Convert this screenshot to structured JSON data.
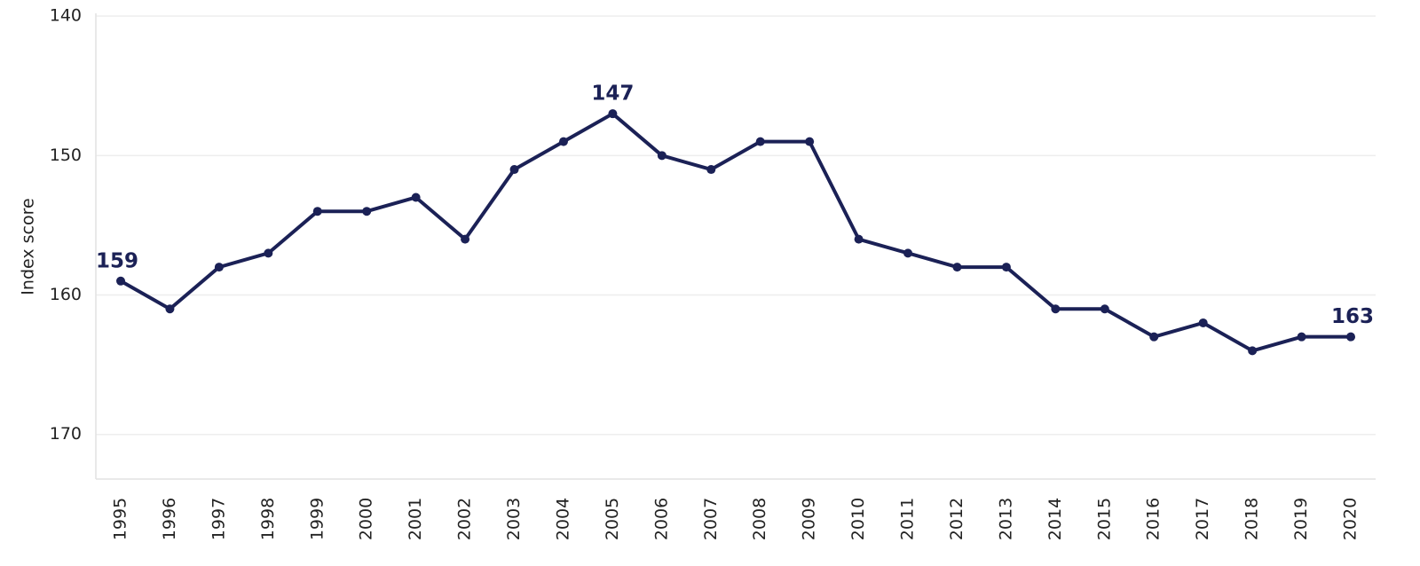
{
  "chart_data": {
    "type": "line",
    "y_label": "Index score",
    "categories": [
      "1995",
      "1996",
      "1997",
      "1998",
      "1999",
      "2000",
      "2001",
      "2002",
      "2003",
      "2004",
      "2005",
      "2006",
      "2007",
      "2008",
      "2009",
      "2010",
      "2011",
      "2012",
      "2013",
      "2014",
      "2015",
      "2016",
      "2017",
      "2018",
      "2019",
      "2020"
    ],
    "series": [
      {
        "color": "#1b2156",
        "values": [
          159,
          161,
          158,
          157,
          154,
          154,
          153,
          156,
          151,
          149,
          147,
          150,
          151,
          149,
          149,
          156,
          157,
          158,
          158,
          161,
          161,
          163,
          162,
          164,
          163,
          163
        ],
        "value_labels": [
          "159",
          null,
          null,
          null,
          null,
          null,
          null,
          null,
          null,
          null,
          "147",
          null,
          null,
          null,
          null,
          null,
          null,
          null,
          null,
          null,
          null,
          null,
          null,
          null,
          null,
          "163"
        ]
      }
    ],
    "ylim": [
      139.8,
      173.2
    ],
    "yticks": [
      140,
      150,
      160,
      170
    ],
    "y_inverted": true,
    "grid": true
  }
}
